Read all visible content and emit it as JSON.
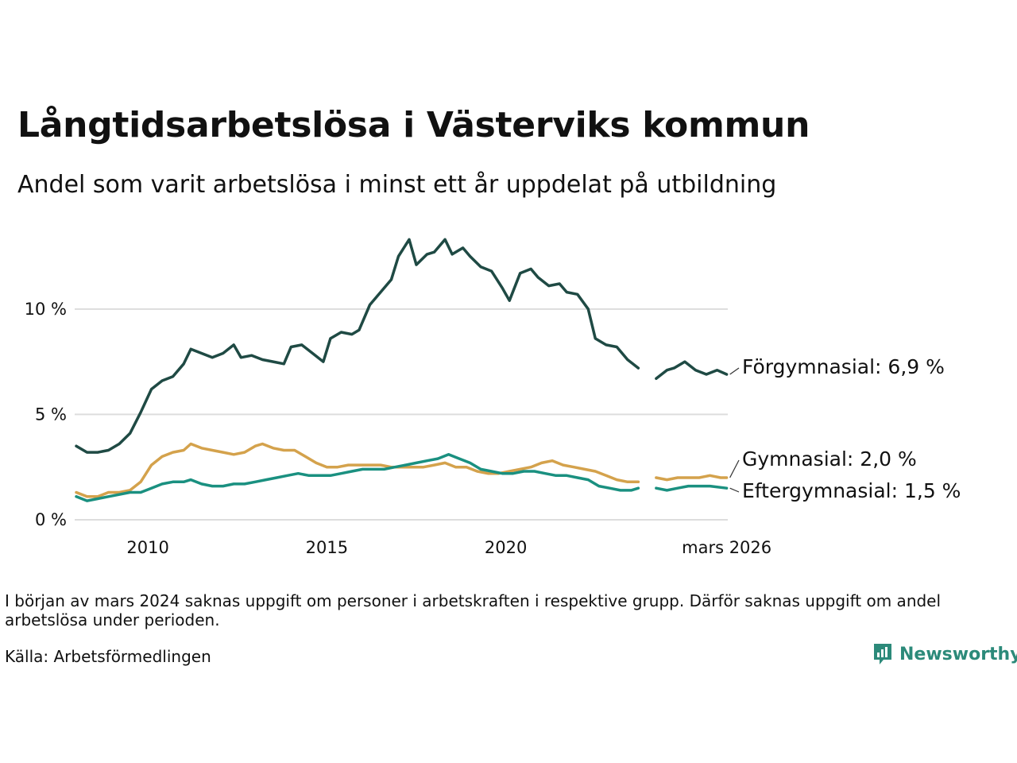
{
  "header": {
    "title": "Långtidsarbetslösa i Västerviks kommun",
    "subtitle": "Andel som varit arbetslösa i minst ett år uppdelat på utbildning"
  },
  "footer": {
    "note": "I början av mars 2024 saknas uppgift om personer i arbetskraften i respektive grupp. Därför saknas uppgift om andel arbetslösa under perioden.",
    "source": "Källa: Arbetsförmedlingen",
    "brand": "Newsworthy"
  },
  "colors": {
    "forgymnasial": "#1f4a44",
    "gymnasial": "#d4a24c",
    "eftergymnasial": "#1a9080",
    "grid": "#dddddd",
    "brand": "#2c8a7a"
  },
  "chart_data": {
    "type": "line",
    "title": "Långtidsarbetslösa i Västerviks kommun",
    "xlabel": "",
    "ylabel": "",
    "xlim": [
      2008.0,
      2026.2
    ],
    "ylim": [
      0,
      13.5
    ],
    "x_ticks": [
      2010,
      2015,
      2020,
      2026.17
    ],
    "x_tick_labels": [
      "2010",
      "2015",
      "2020",
      "mars 2026"
    ],
    "y_ticks": [
      0,
      5,
      10
    ],
    "y_tick_labels": [
      "0 %",
      "5 %",
      "10 %"
    ],
    "gap": [
      2023.7,
      2024.2
    ],
    "series": [
      {
        "name": "Förgymnasial",
        "label": "Förgymnasial: 6,9 %",
        "color_key": "forgymnasial",
        "points": [
          [
            2008.0,
            3.5
          ],
          [
            2008.3,
            3.2
          ],
          [
            2008.6,
            3.2
          ],
          [
            2008.9,
            3.3
          ],
          [
            2009.2,
            3.6
          ],
          [
            2009.5,
            4.1
          ],
          [
            2009.8,
            5.1
          ],
          [
            2010.1,
            6.2
          ],
          [
            2010.4,
            6.6
          ],
          [
            2010.7,
            6.8
          ],
          [
            2011.0,
            7.4
          ],
          [
            2011.2,
            8.1
          ],
          [
            2011.5,
            7.9
          ],
          [
            2011.8,
            7.7
          ],
          [
            2012.1,
            7.9
          ],
          [
            2012.4,
            8.3
          ],
          [
            2012.6,
            7.7
          ],
          [
            2012.9,
            7.8
          ],
          [
            2013.2,
            7.6
          ],
          [
            2013.5,
            7.5
          ],
          [
            2013.8,
            7.4
          ],
          [
            2014.0,
            8.2
          ],
          [
            2014.3,
            8.3
          ],
          [
            2014.6,
            7.9
          ],
          [
            2014.9,
            7.5
          ],
          [
            2015.1,
            8.6
          ],
          [
            2015.4,
            8.9
          ],
          [
            2015.7,
            8.8
          ],
          [
            2015.9,
            9.0
          ],
          [
            2016.2,
            10.2
          ],
          [
            2016.5,
            10.8
          ],
          [
            2016.8,
            11.4
          ],
          [
            2017.0,
            12.5
          ],
          [
            2017.3,
            13.3
          ],
          [
            2017.5,
            12.1
          ],
          [
            2017.8,
            12.6
          ],
          [
            2018.0,
            12.7
          ],
          [
            2018.3,
            13.3
          ],
          [
            2018.5,
            12.6
          ],
          [
            2018.8,
            12.9
          ],
          [
            2019.0,
            12.5
          ],
          [
            2019.3,
            12.0
          ],
          [
            2019.6,
            11.8
          ],
          [
            2019.9,
            11.0
          ],
          [
            2020.1,
            10.4
          ],
          [
            2020.4,
            11.7
          ],
          [
            2020.7,
            11.9
          ],
          [
            2020.9,
            11.5
          ],
          [
            2021.2,
            11.1
          ],
          [
            2021.5,
            11.2
          ],
          [
            2021.7,
            10.8
          ],
          [
            2022.0,
            10.7
          ],
          [
            2022.3,
            10.0
          ],
          [
            2022.5,
            8.6
          ],
          [
            2022.8,
            8.3
          ],
          [
            2023.1,
            8.2
          ],
          [
            2023.4,
            7.6
          ],
          [
            2023.7,
            7.2
          ],
          [
            2024.2,
            6.7
          ],
          [
            2024.5,
            7.1
          ],
          [
            2024.7,
            7.2
          ],
          [
            2025.0,
            7.5
          ],
          [
            2025.3,
            7.1
          ],
          [
            2025.6,
            6.9
          ],
          [
            2025.9,
            7.1
          ],
          [
            2026.17,
            6.9
          ]
        ]
      },
      {
        "name": "Gymnasial",
        "label": "Gymnasial: 2,0 %",
        "color_key": "gymnasial",
        "points": [
          [
            2008.0,
            1.3
          ],
          [
            2008.3,
            1.1
          ],
          [
            2008.6,
            1.1
          ],
          [
            2008.9,
            1.3
          ],
          [
            2009.2,
            1.3
          ],
          [
            2009.5,
            1.4
          ],
          [
            2009.8,
            1.8
          ],
          [
            2010.1,
            2.6
          ],
          [
            2010.4,
            3.0
          ],
          [
            2010.7,
            3.2
          ],
          [
            2011.0,
            3.3
          ],
          [
            2011.2,
            3.6
          ],
          [
            2011.5,
            3.4
          ],
          [
            2011.8,
            3.3
          ],
          [
            2012.1,
            3.2
          ],
          [
            2012.4,
            3.1
          ],
          [
            2012.7,
            3.2
          ],
          [
            2013.0,
            3.5
          ],
          [
            2013.2,
            3.6
          ],
          [
            2013.5,
            3.4
          ],
          [
            2013.8,
            3.3
          ],
          [
            2014.1,
            3.3
          ],
          [
            2014.4,
            3.0
          ],
          [
            2014.7,
            2.7
          ],
          [
            2015.0,
            2.5
          ],
          [
            2015.3,
            2.5
          ],
          [
            2015.6,
            2.6
          ],
          [
            2015.9,
            2.6
          ],
          [
            2016.2,
            2.6
          ],
          [
            2016.5,
            2.6
          ],
          [
            2016.8,
            2.5
          ],
          [
            2017.1,
            2.5
          ],
          [
            2017.4,
            2.5
          ],
          [
            2017.7,
            2.5
          ],
          [
            2018.0,
            2.6
          ],
          [
            2018.3,
            2.7
          ],
          [
            2018.6,
            2.5
          ],
          [
            2018.9,
            2.5
          ],
          [
            2019.2,
            2.3
          ],
          [
            2019.5,
            2.2
          ],
          [
            2019.8,
            2.2
          ],
          [
            2020.1,
            2.3
          ],
          [
            2020.4,
            2.4
          ],
          [
            2020.7,
            2.5
          ],
          [
            2021.0,
            2.7
          ],
          [
            2021.3,
            2.8
          ],
          [
            2021.6,
            2.6
          ],
          [
            2021.9,
            2.5
          ],
          [
            2022.2,
            2.4
          ],
          [
            2022.5,
            2.3
          ],
          [
            2022.8,
            2.1
          ],
          [
            2023.1,
            1.9
          ],
          [
            2023.4,
            1.8
          ],
          [
            2023.7,
            1.8
          ],
          [
            2024.2,
            2.0
          ],
          [
            2024.5,
            1.9
          ],
          [
            2024.8,
            2.0
          ],
          [
            2025.1,
            2.0
          ],
          [
            2025.4,
            2.0
          ],
          [
            2025.7,
            2.1
          ],
          [
            2026.0,
            2.0
          ],
          [
            2026.17,
            2.0
          ]
        ]
      },
      {
        "name": "Eftergymnasial",
        "label": "Eftergymnasial: 1,5 %",
        "color_key": "eftergymnasial",
        "points": [
          [
            2008.0,
            1.1
          ],
          [
            2008.3,
            0.9
          ],
          [
            2008.6,
            1.0
          ],
          [
            2008.9,
            1.1
          ],
          [
            2009.2,
            1.2
          ],
          [
            2009.5,
            1.3
          ],
          [
            2009.8,
            1.3
          ],
          [
            2010.1,
            1.5
          ],
          [
            2010.4,
            1.7
          ],
          [
            2010.7,
            1.8
          ],
          [
            2011.0,
            1.8
          ],
          [
            2011.2,
            1.9
          ],
          [
            2011.5,
            1.7
          ],
          [
            2011.8,
            1.6
          ],
          [
            2012.1,
            1.6
          ],
          [
            2012.4,
            1.7
          ],
          [
            2012.7,
            1.7
          ],
          [
            2013.0,
            1.8
          ],
          [
            2013.3,
            1.9
          ],
          [
            2013.6,
            2.0
          ],
          [
            2013.9,
            2.1
          ],
          [
            2014.2,
            2.2
          ],
          [
            2014.5,
            2.1
          ],
          [
            2014.8,
            2.1
          ],
          [
            2015.1,
            2.1
          ],
          [
            2015.4,
            2.2
          ],
          [
            2015.7,
            2.3
          ],
          [
            2016.0,
            2.4
          ],
          [
            2016.3,
            2.4
          ],
          [
            2016.6,
            2.4
          ],
          [
            2016.9,
            2.5
          ],
          [
            2017.2,
            2.6
          ],
          [
            2017.5,
            2.7
          ],
          [
            2017.8,
            2.8
          ],
          [
            2018.1,
            2.9
          ],
          [
            2018.4,
            3.1
          ],
          [
            2018.7,
            2.9
          ],
          [
            2019.0,
            2.7
          ],
          [
            2019.3,
            2.4
          ],
          [
            2019.6,
            2.3
          ],
          [
            2019.9,
            2.2
          ],
          [
            2020.2,
            2.2
          ],
          [
            2020.5,
            2.3
          ],
          [
            2020.8,
            2.3
          ],
          [
            2021.1,
            2.2
          ],
          [
            2021.4,
            2.1
          ],
          [
            2021.7,
            2.1
          ],
          [
            2022.0,
            2.0
          ],
          [
            2022.3,
            1.9
          ],
          [
            2022.6,
            1.6
          ],
          [
            2022.9,
            1.5
          ],
          [
            2023.2,
            1.4
          ],
          [
            2023.5,
            1.4
          ],
          [
            2023.7,
            1.5
          ],
          [
            2024.2,
            1.5
          ],
          [
            2024.5,
            1.4
          ],
          [
            2024.8,
            1.5
          ],
          [
            2025.1,
            1.6
          ],
          [
            2025.4,
            1.6
          ],
          [
            2025.7,
            1.6
          ],
          [
            2026.17,
            1.5
          ]
        ]
      }
    ]
  }
}
